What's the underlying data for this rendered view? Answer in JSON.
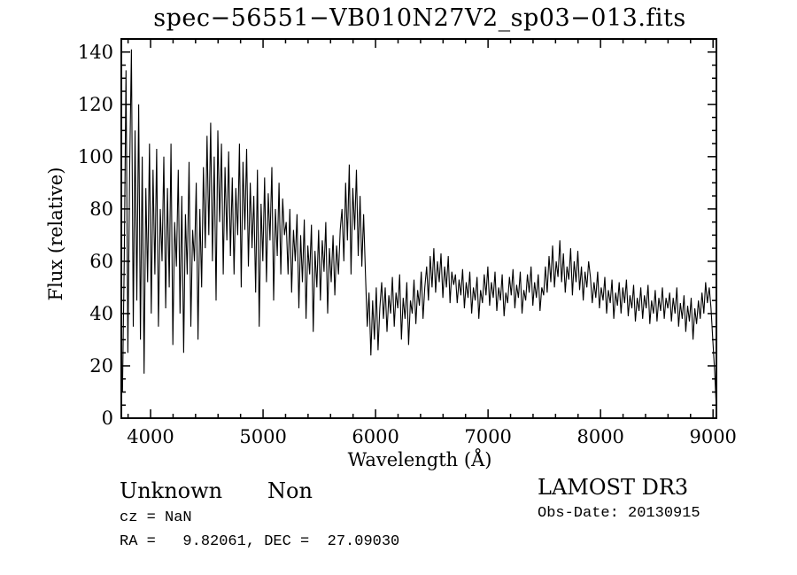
{
  "header": {
    "title": "spec−56551−VB010N27V2_sp03−013.fits"
  },
  "annotations": {
    "object_class": "Unknown",
    "object_subclass": "Non",
    "cz_line": "cz = NaN",
    "radec_line": "RA =   9.82061, DEC =  27.09030",
    "survey": "LAMOST DR3",
    "obs_date_line": "Obs-Date: 20130915"
  },
  "colors": {
    "line": "#000000",
    "background": "#ffffff",
    "axis": "#000000"
  },
  "chart_data": {
    "type": "line",
    "title": "spec−56551−VB010N27V2_sp03−013.fits",
    "xlabel": "Wavelength (Å)",
    "ylabel": "Flux (relative)",
    "xlim": [
      3740,
      9030
    ],
    "ylim": [
      0,
      145
    ],
    "x_ticks": [
      4000,
      5000,
      6000,
      7000,
      8000,
      9000
    ],
    "x_minor_step": 200,
    "y_ticks": [
      0,
      20,
      40,
      60,
      80,
      100,
      120,
      140
    ],
    "y_minor_step": 5,
    "grid": false,
    "legend": "none",
    "series_name": "spectrum flux",
    "wavelength_start": 3750,
    "wavelength_step": 16,
    "flux": [
      10,
      60,
      133,
      25,
      95,
      141,
      35,
      110,
      45,
      120,
      30,
      100,
      17,
      88,
      52,
      105,
      40,
      95,
      55,
      103,
      35,
      80,
      60,
      100,
      42,
      88,
      50,
      105,
      28,
      75,
      58,
      95,
      40,
      85,
      25,
      78,
      55,
      98,
      35,
      72,
      60,
      90,
      30,
      80,
      50,
      96,
      65,
      108,
      70,
      113,
      60,
      100,
      45,
      110,
      75,
      105,
      55,
      96,
      68,
      102,
      62,
      92,
      55,
      88,
      70,
      105,
      50,
      98,
      72,
      103,
      58,
      90,
      65,
      85,
      48,
      95,
      35,
      82,
      60,
      92,
      52,
      86,
      68,
      96,
      45,
      80,
      62,
      90,
      55,
      84,
      70,
      75,
      55,
      80,
      48,
      72,
      60,
      78,
      42,
      70,
      52,
      76,
      38,
      66,
      55,
      74,
      33,
      64,
      50,
      72,
      45,
      68,
      56,
      75,
      40,
      65,
      52,
      70,
      47,
      66,
      55,
      72,
      80,
      60,
      90,
      68,
      97,
      55,
      88,
      72,
      95,
      62,
      85,
      58,
      78,
      55,
      35,
      48,
      24,
      45,
      30,
      50,
      26,
      42,
      52,
      38,
      50,
      33,
      47,
      40,
      54,
      35,
      48,
      42,
      55,
      30,
      46,
      38,
      52,
      28,
      45,
      40,
      53,
      36,
      49,
      43,
      56,
      38,
      50,
      58,
      45,
      62,
      50,
      65,
      48,
      60,
      52,
      63,
      46,
      58,
      50,
      62,
      44,
      56,
      51,
      55,
      44,
      53,
      47,
      57,
      42,
      52,
      46,
      56,
      40,
      50,
      45,
      54,
      38,
      49,
      44,
      55,
      47,
      58,
      43,
      52,
      46,
      56,
      41,
      50,
      45,
      55,
      39,
      48,
      44,
      54,
      47,
      57,
      42,
      51,
      46,
      56,
      40,
      49,
      45,
      55,
      48,
      58,
      43,
      52,
      46,
      55,
      41,
      50,
      47,
      58,
      48,
      62,
      52,
      66,
      50,
      60,
      54,
      68,
      52,
      63,
      48,
      58,
      53,
      65,
      47,
      60,
      52,
      64,
      49,
      58,
      45,
      56,
      50,
      60,
      54,
      44,
      52,
      46,
      56,
      42,
      50,
      45,
      54,
      40,
      49,
      44,
      53,
      38,
      48,
      43,
      52,
      40,
      50,
      44,
      53,
      39,
      47,
      42,
      51,
      37,
      46,
      41,
      50,
      38,
      47,
      42,
      51,
      36,
      45,
      40,
      49,
      37,
      46,
      41,
      50,
      38,
      46,
      42,
      48,
      37,
      46,
      40,
      50,
      35,
      44,
      38,
      47,
      33,
      43,
      37,
      46,
      30,
      42,
      36,
      45,
      38,
      48,
      40,
      52,
      44,
      50,
      42,
      30,
      18,
      3
    ]
  }
}
